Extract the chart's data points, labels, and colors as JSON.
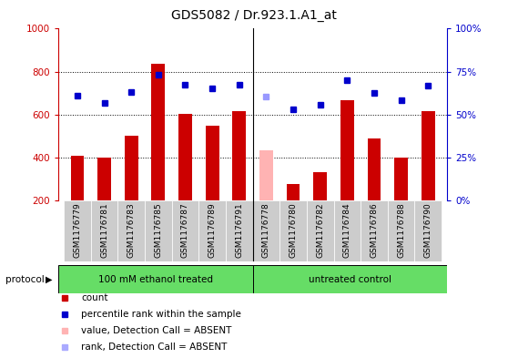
{
  "title": "GDS5082 / Dr.923.1.A1_at",
  "samples": [
    "GSM1176779",
    "GSM1176781",
    "GSM1176783",
    "GSM1176785",
    "GSM1176787",
    "GSM1176789",
    "GSM1176791",
    "GSM1176778",
    "GSM1176780",
    "GSM1176782",
    "GSM1176784",
    "GSM1176786",
    "GSM1176788",
    "GSM1176790"
  ],
  "bar_values": [
    410,
    400,
    500,
    835,
    605,
    550,
    615,
    435,
    275,
    330,
    665,
    490,
    400,
    615
  ],
  "bar_colors": [
    "#cc0000",
    "#cc0000",
    "#cc0000",
    "#cc0000",
    "#cc0000",
    "#cc0000",
    "#cc0000",
    "#ffb3b3",
    "#cc0000",
    "#cc0000",
    "#cc0000",
    "#cc0000",
    "#cc0000",
    "#cc0000"
  ],
  "rank_values": [
    690,
    655,
    705,
    785,
    740,
    720,
    740,
    685,
    625,
    645,
    760,
    700,
    665,
    735
  ],
  "rank_colors": [
    "#0000cc",
    "#0000cc",
    "#0000cc",
    "#0000cc",
    "#0000cc",
    "#0000cc",
    "#0000cc",
    "#9999ff",
    "#0000cc",
    "#0000cc",
    "#0000cc",
    "#0000cc",
    "#0000cc",
    "#0000cc"
  ],
  "ylim_left": [
    200,
    1000
  ],
  "ylim_right": [
    0,
    100
  ],
  "yticks_left": [
    200,
    400,
    600,
    800,
    1000
  ],
  "yticks_right": [
    0,
    25,
    50,
    75,
    100
  ],
  "group1_label": "100 mM ethanol treated",
  "group2_label": "untreated control",
  "group1_count": 7,
  "group2_count": 7,
  "protocol_label": "protocol",
  "legend_items": [
    {
      "label": "count",
      "color": "#cc0000"
    },
    {
      "label": "percentile rank within the sample",
      "color": "#0000cc"
    },
    {
      "label": "value, Detection Call = ABSENT",
      "color": "#ffb3b3"
    },
    {
      "label": "rank, Detection Call = ABSENT",
      "color": "#aaaaff"
    }
  ],
  "axis_left_color": "#cc0000",
  "axis_right_color": "#0000cc",
  "bar_width": 0.5,
  "title_fontsize": 10,
  "group_bg_color": "#66dd66",
  "tick_area_color": "#cccccc",
  "sep_line_color": "#000000"
}
